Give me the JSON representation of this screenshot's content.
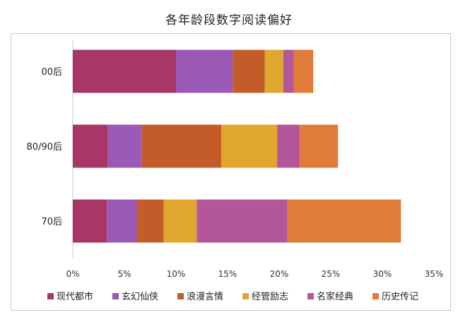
{
  "chart_data": {
    "type": "bar",
    "orientation": "horizontal",
    "stacked": true,
    "title": "各年龄段数字阅读偏好",
    "categories": [
      "00后",
      "80/90后",
      "70后"
    ],
    "xlim": [
      0,
      35
    ],
    "xticks": [
      "0%",
      "5%",
      "10%",
      "15%",
      "20%",
      "25%",
      "30%",
      "35%"
    ],
    "grid": false,
    "legend_position": "bottom",
    "series": [
      {
        "name": "现代都市",
        "color": "#A83768",
        "values": [
          10.0,
          3.4,
          3.3
        ]
      },
      {
        "name": "玄幻仙侠",
        "color": "#9B59B6",
        "values": [
          5.5,
          3.3,
          2.9
        ]
      },
      {
        "name": "浪漫言情",
        "color": "#C45C2A",
        "values": [
          3.1,
          7.7,
          2.6
        ]
      },
      {
        "name": "经管励志",
        "color": "#E0A72E",
        "values": [
          1.8,
          5.4,
          3.2
        ]
      },
      {
        "name": "名家经典",
        "color": "#B4579A",
        "values": [
          1.0,
          2.2,
          8.8
        ]
      },
      {
        "name": "历史传记",
        "color": "#E07B39",
        "values": [
          1.9,
          3.7,
          11.0
        ]
      }
    ]
  }
}
